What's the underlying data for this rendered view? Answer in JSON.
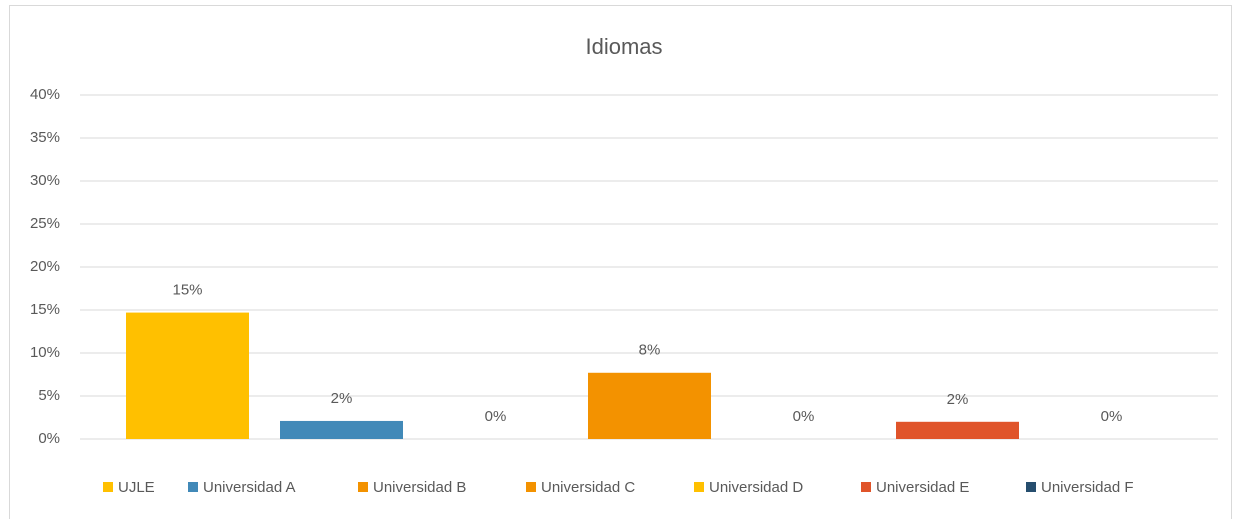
{
  "chart_data": {
    "type": "bar",
    "title": "Idiomas",
    "series": [
      {
        "name": "UJLE",
        "color": "#FFC000",
        "values": [
          14.7
        ],
        "value_labels": [
          "15%"
        ]
      },
      {
        "name": "Universidad A",
        "color": "#4189B8",
        "values": [
          2.1
        ],
        "value_labels": [
          "2%"
        ]
      },
      {
        "name": "Universidad B",
        "color": "#F39200",
        "values": [
          0
        ],
        "value_labels": [
          "0%"
        ]
      },
      {
        "name": "Universidad C",
        "color": "#F39200",
        "values": [
          7.7
        ],
        "value_labels": [
          "8%"
        ]
      },
      {
        "name": "Universidad D",
        "color": "#FFC000",
        "values": [
          0
        ],
        "value_labels": [
          "0%"
        ]
      },
      {
        "name": "Universidad E",
        "color": "#E0542A",
        "values": [
          2.0
        ],
        "value_labels": [
          "2%"
        ]
      },
      {
        "name": "Universidad F",
        "color": "#264E6E",
        "values": [
          0
        ],
        "value_labels": [
          "0%"
        ]
      }
    ],
    "ylim": [
      0,
      40
    ],
    "yticks": [
      {
        "value": 0,
        "label": "0%"
      },
      {
        "value": 5,
        "label": "5%"
      },
      {
        "value": 10,
        "label": "10%"
      },
      {
        "value": 15,
        "label": "15%"
      },
      {
        "value": 20,
        "label": "20%"
      },
      {
        "value": 25,
        "label": "25%"
      },
      {
        "value": 30,
        "label": "30%"
      },
      {
        "value": 35,
        "label": "35%"
      },
      {
        "value": 40,
        "label": "40%"
      }
    ],
    "grid": true,
    "legend": "bottom"
  }
}
